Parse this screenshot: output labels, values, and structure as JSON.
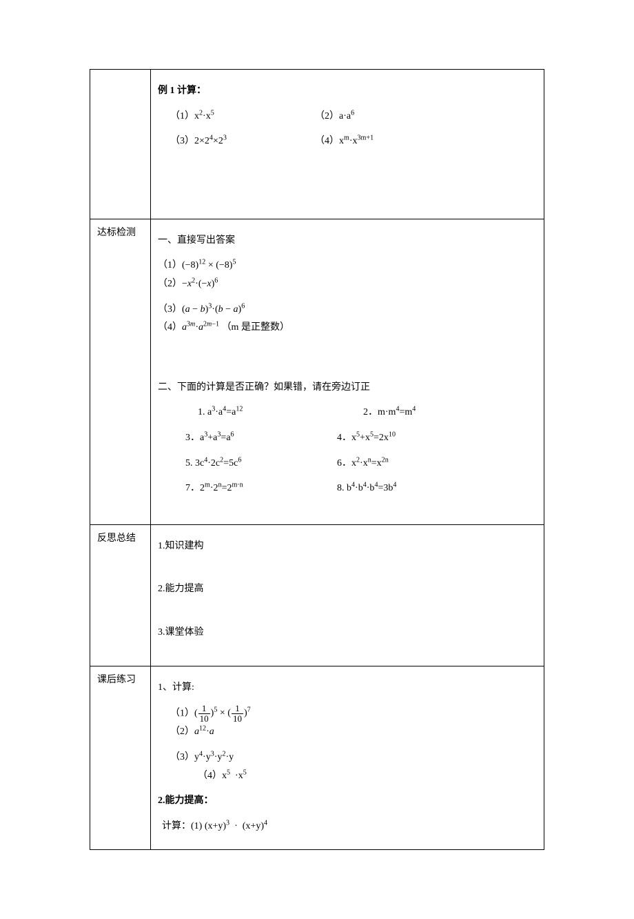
{
  "row1": {
    "title": "例 1 计算：",
    "items": [
      {
        "left": "（1）x<sup>2</sup>·x<sup>5</sup>",
        "right": "（2）a·a<sup>6</sup>"
      },
      {
        "left": "（3）2×2<sup>4</sup>×2<sup>3</sup>",
        "right": "（4）x<sup>m</sup>·x<sup>3m+1</sup>"
      }
    ]
  },
  "row2": {
    "label": "达标检测",
    "section1_title": "一、直接写出答案",
    "section1_items": [
      {
        "left": "（1）(−8)<sup>12</sup> × (−8)<sup>5</sup>",
        "right": "（2）−<span class='it'>x</span><sup>2</sup>·(−<span class='it'>x</span>)<sup>6</sup>"
      },
      {
        "left": "（3）(<span class='it'>a</span> − <span class='it'>b</span>)<sup>3</sup>·(<span class='it'>b</span> − <span class='it'>a</span>)<sup>6</sup>",
        "right": "（4）<span class='it'>a</span><sup>3<span class='it'>m</span></sup>·<span class='it'>a</span><sup>2<span class='it'>m</span>−1</sup>&nbsp;（m 是正整数）"
      }
    ],
    "section2_title": "二、下面的计算是否正确？如果错，请在旁边订正",
    "section2_items": [
      {
        "left": "1. a<sup>3</sup>·a<sup>4</sup>=a<sup>12</sup>",
        "right": "2．m·m<sup>4</sup>=m<sup>4</sup>"
      },
      {
        "left": "3．a<sup>3</sup>+a<sup>3</sup>=a<sup>6</sup>",
        "right": "4．x<sup>5</sup>+x<sup>5</sup>=2x<sup>10</sup>"
      },
      {
        "left": "5. 3c<sup>4</sup>·2c<sup>2</sup>=5c<sup>6</sup>",
        "right": "6．x<sup>2</sup>·x<sup>n</sup>=x<sup>2n</sup>"
      },
      {
        "left": "7．2<sup>m</sup>·2<sup>n</sup>=2<sup>m·n</sup>",
        "right": "8. b<sup>4</sup>·b<sup>4</sup>·b<sup>4</sup>=3b<sup>4</sup>"
      }
    ]
  },
  "row3": {
    "label": "反思总结",
    "items": [
      "1.知识建构",
      "2.能力提高",
      "3.课堂体验"
    ]
  },
  "row4": {
    "label": "课后练习",
    "title": "1、计算:",
    "items_row1_left_prefix": "（1）(",
    "items_row1_left_mid": ")<sup>5</sup> × (",
    "items_row1_left_suffix": ")<sup>7</sup>",
    "frac_num": "1",
    "frac_den": "10",
    "items_row1_right": "（2）<span class='it'>a</span><sup>12</sup>·<span class='it'>a</span>",
    "items_row2_left": "（3）y<sup>4</sup>·y<sup>3</sup>·y<sup>2</sup>·y",
    "items_row2_right": "（4）x<sup>5</sup>&nbsp;&nbsp;·x<sup>5</sup>",
    "section2_title": "2.能力提高：",
    "section2_line": "计算：(1) (x+y)<sup>3</sup>&nbsp;&nbsp;·&nbsp;&nbsp;(x+y)<sup>4</sup>"
  },
  "style": {
    "text_color": "#000000",
    "bg_color": "#ffffff",
    "border_color": "#000000",
    "font_size": 14
  }
}
